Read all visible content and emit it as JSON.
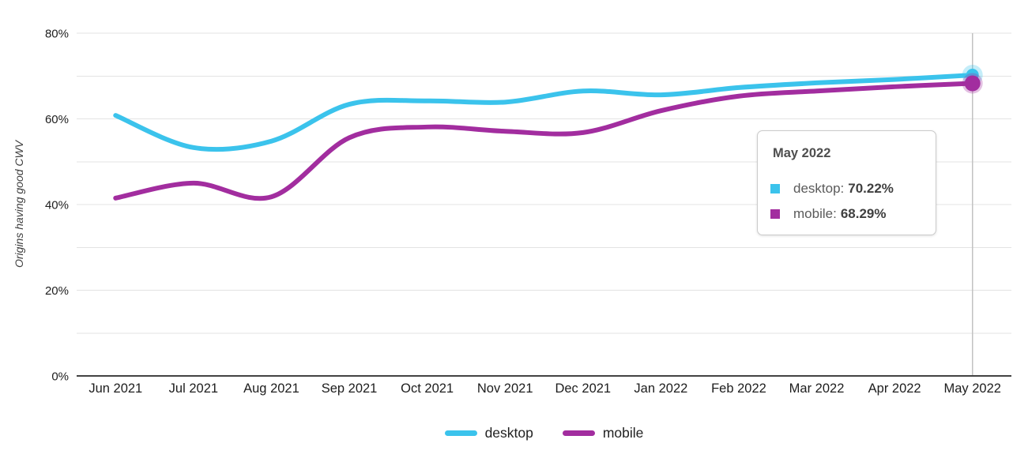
{
  "chart_data": {
    "type": "line",
    "title": "",
    "xlabel": "",
    "ylabel": "Origins having good CWV",
    "categories": [
      "Jun 2021",
      "Jul 2021",
      "Aug 2021",
      "Sep 2021",
      "Oct 2021",
      "Nov 2021",
      "Dec 2021",
      "Jan 2022",
      "Feb 2022",
      "Mar 2022",
      "Apr 2022",
      "May 2022"
    ],
    "series": [
      {
        "name": "desktop",
        "color": "#3BC3EC",
        "values": [
          60.8,
          53.3,
          54.8,
          63.4,
          64.2,
          63.9,
          66.5,
          65.6,
          67.3,
          68.4,
          69.2,
          70.22
        ]
      },
      {
        "name": "mobile",
        "color": "#A22D9F",
        "values": [
          41.5,
          45.0,
          41.8,
          55.6,
          58.1,
          57.1,
          56.8,
          61.9,
          65.3,
          66.5,
          67.5,
          68.29
        ]
      }
    ],
    "ylim": [
      0,
      80
    ],
    "yticks": [
      {
        "value": 0,
        "label": "0%"
      },
      {
        "value": 20,
        "label": "20%"
      },
      {
        "value": 40,
        "label": "40%"
      },
      {
        "value": 60,
        "label": "60%"
      },
      {
        "value": 80,
        "label": "80%"
      }
    ],
    "grid": "horizontal lines every 10%",
    "legend_position": "bottom",
    "highlight": {
      "category": "May 2022",
      "index": 11,
      "crosshair": true
    }
  },
  "tooltip": {
    "title": "May 2022",
    "rows": [
      {
        "series": "desktop",
        "label": "desktop:",
        "value": "70.22%"
      },
      {
        "series": "mobile",
        "label": "mobile:",
        "value": "68.29%"
      }
    ]
  },
  "colors": {
    "grid": "#E3E3E3",
    "axis": "#424242",
    "crosshair": "#C2C2C2",
    "axis_text": "#1D1D1D",
    "background": "#FFFFFF"
  }
}
